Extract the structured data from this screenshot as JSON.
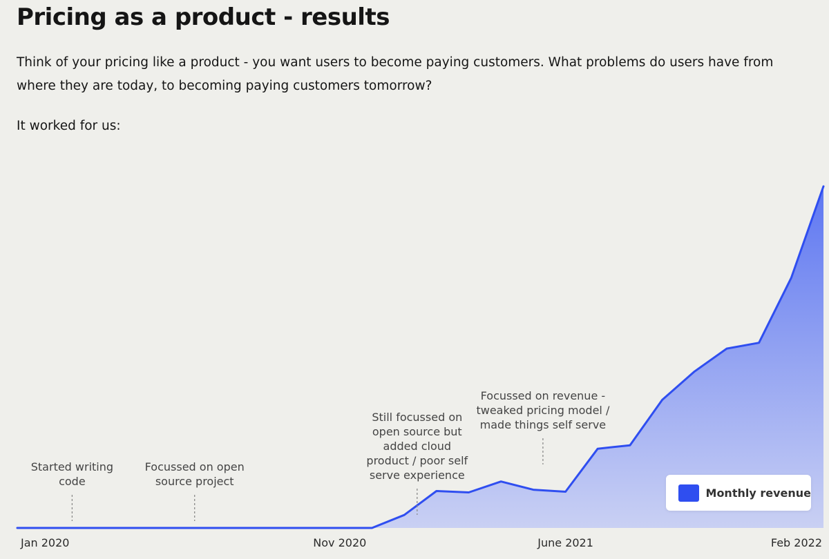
{
  "page": {
    "title": "Pricing as a product - results",
    "description": "Think of your pricing like a product - you want users to become paying customers. What problems do users have from where they are today, to becoming paying customers tomorrow?",
    "intro": "It worked for us:"
  },
  "colors": {
    "line": "#2f4ef0",
    "fill_top": "#5e77f2",
    "fill_bottom": "#c9d0f3",
    "text": "#151515",
    "annotation": "#444444"
  },
  "chart_data": {
    "type": "area",
    "title": "",
    "xlabel": "",
    "ylabel": "",
    "x_range": [
      0,
      25
    ],
    "ylim": [
      0,
      100
    ],
    "grid": false,
    "x_ticks": [
      {
        "x": 0,
        "label": "Jan 2020"
      },
      {
        "x": 10,
        "label": "Nov 2020"
      },
      {
        "x": 17,
        "label": "June 2021"
      },
      {
        "x": 25,
        "label": "Feb 2022"
      }
    ],
    "series": [
      {
        "name": "Monthly revenue",
        "x": [
          0,
          11,
          12,
          13,
          14,
          15,
          16,
          17,
          18,
          19,
          20,
          21,
          22,
          23,
          24,
          25
        ],
        "values": [
          0,
          0,
          3.8,
          10.8,
          10.4,
          13.6,
          11.2,
          10.6,
          23.2,
          24.2,
          37.5,
          45.8,
          52.5,
          54.2,
          73.2,
          100
        ]
      }
    ],
    "annotations": [
      {
        "x": 1.7,
        "lines": [
          "Started writing",
          "code"
        ]
      },
      {
        "x": 5.5,
        "lines": [
          "Focussed on open",
          "source project"
        ]
      },
      {
        "x": 12.4,
        "lines": [
          "Still focussed on",
          "open source but",
          "added cloud",
          "product / poor self",
          "serve experience"
        ]
      },
      {
        "x": 16.3,
        "lines": [
          "Focussed on revenue -",
          "tweaked pricing model /",
          "made things self serve"
        ]
      }
    ],
    "legend": {
      "label": "Monthly revenue",
      "position": "bottom-right"
    }
  }
}
